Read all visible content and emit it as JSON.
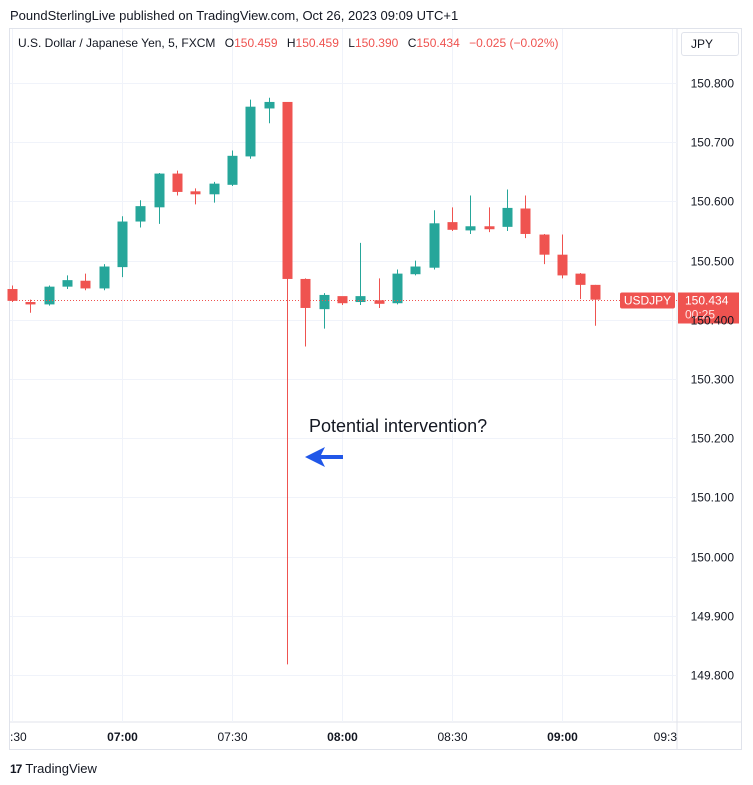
{
  "header": {
    "publisher_line": "PoundSterlingLive published on TradingView.com, Oct 26, 2023 09:09 UTC+1"
  },
  "legend": {
    "symbol": "U.S. Dollar / Japanese Yen, 5, FXCM",
    "o_label": "O",
    "o_value": "150.459",
    "h_label": "H",
    "h_value": "150.459",
    "l_label": "L",
    "l_value": "150.390",
    "c_label": "C",
    "c_value": "150.434",
    "change": "−0.025 (−0.02%)"
  },
  "currency_button": "JPY",
  "footer": {
    "logo_mark": "17",
    "logo_text": "TradingView"
  },
  "colors": {
    "up": "#26a69a",
    "down": "#ef5350",
    "arrow": "#2157e8",
    "grid": "#f0f3fa"
  },
  "chart_data": {
    "type": "candlestick",
    "interval": "5 min",
    "ylim": [
      149.72,
      150.87
    ],
    "y_ticks": [
      "149.800",
      "149.900",
      "150.000",
      "150.100",
      "150.200",
      "150.300",
      "150.400",
      "150.500",
      "150.600",
      "150.700",
      "150.800"
    ],
    "x_ticks": [
      {
        "t": "06:30",
        "label": ":30",
        "bold": false
      },
      {
        "t": "07:00",
        "label": "07:00",
        "bold": true
      },
      {
        "t": "07:30",
        "label": "07:30",
        "bold": false
      },
      {
        "t": "08:00",
        "label": "08:00",
        "bold": true
      },
      {
        "t": "08:30",
        "label": "08:30",
        "bold": false
      },
      {
        "t": "09:00",
        "label": "09:00",
        "bold": true
      },
      {
        "t": "09:30",
        "label": "09:3",
        "bold": false
      }
    ],
    "candles": [
      {
        "t": "06:30",
        "o": 150.452,
        "h": 150.458,
        "l": 150.43,
        "c": 150.432
      },
      {
        "t": "06:35",
        "o": 150.43,
        "h": 150.434,
        "l": 150.412,
        "c": 150.426
      },
      {
        "t": "06:40",
        "o": 150.426,
        "h": 150.458,
        "l": 150.424,
        "c": 150.456
      },
      {
        "t": "06:45",
        "o": 150.456,
        "h": 150.475,
        "l": 150.452,
        "c": 150.467
      },
      {
        "t": "06:50",
        "o": 150.466,
        "h": 150.478,
        "l": 150.45,
        "c": 150.453
      },
      {
        "t": "06:55",
        "o": 150.453,
        "h": 150.494,
        "l": 150.45,
        "c": 150.49
      },
      {
        "t": "07:00",
        "o": 150.489,
        "h": 150.575,
        "l": 150.472,
        "c": 150.566
      },
      {
        "t": "07:05",
        "o": 150.566,
        "h": 150.602,
        "l": 150.556,
        "c": 150.592
      },
      {
        "t": "07:10",
        "o": 150.59,
        "h": 150.648,
        "l": 150.562,
        "c": 150.647
      },
      {
        "t": "07:15",
        "o": 150.647,
        "h": 150.652,
        "l": 150.61,
        "c": 150.616
      },
      {
        "t": "07:20",
        "o": 150.617,
        "h": 150.622,
        "l": 150.595,
        "c": 150.612
      },
      {
        "t": "07:25",
        "o": 150.612,
        "h": 150.633,
        "l": 150.598,
        "c": 150.63
      },
      {
        "t": "07:30",
        "o": 150.628,
        "h": 150.686,
        "l": 150.626,
        "c": 150.677
      },
      {
        "t": "07:35",
        "o": 150.676,
        "h": 150.772,
        "l": 150.672,
        "c": 150.76
      },
      {
        "t": "07:40",
        "o": 150.757,
        "h": 150.775,
        "l": 150.732,
        "c": 150.768
      },
      {
        "t": "07:45",
        "o": 150.768,
        "h": 150.768,
        "l": 149.818,
        "c": 150.469
      },
      {
        "t": "07:50",
        "o": 150.469,
        "h": 150.47,
        "l": 150.355,
        "c": 150.42
      },
      {
        "t": "07:55",
        "o": 150.418,
        "h": 150.445,
        "l": 150.385,
        "c": 150.442
      },
      {
        "t": "08:00",
        "o": 150.44,
        "h": 150.43,
        "l": 150.425,
        "c": 150.428
      },
      {
        "t": "08:05",
        "o": 150.43,
        "h": 150.53,
        "l": 150.425,
        "c": 150.44
      },
      {
        "t": "08:10",
        "o": 150.433,
        "h": 150.47,
        "l": 150.42,
        "c": 150.427
      },
      {
        "t": "08:15",
        "o": 150.428,
        "h": 150.485,
        "l": 150.426,
        "c": 150.478
      },
      {
        "t": "08:20",
        "o": 150.477,
        "h": 150.5,
        "l": 150.475,
        "c": 150.49
      },
      {
        "t": "08:25",
        "o": 150.488,
        "h": 150.585,
        "l": 150.485,
        "c": 150.563
      },
      {
        "t": "08:30",
        "o": 150.565,
        "h": 150.59,
        "l": 150.55,
        "c": 150.552
      },
      {
        "t": "08:35",
        "o": 150.551,
        "h": 150.61,
        "l": 150.545,
        "c": 150.558
      },
      {
        "t": "08:40",
        "o": 150.558,
        "h": 150.59,
        "l": 150.548,
        "c": 150.553
      },
      {
        "t": "08:45",
        "o": 150.557,
        "h": 150.62,
        "l": 150.55,
        "c": 150.589
      },
      {
        "t": "08:50",
        "o": 150.588,
        "h": 150.61,
        "l": 150.538,
        "c": 150.545
      },
      {
        "t": "08:55",
        "o": 150.544,
        "h": 150.545,
        "l": 150.494,
        "c": 150.51
      },
      {
        "t": "09:00",
        "o": 150.51,
        "h": 150.544,
        "l": 150.47,
        "c": 150.475
      },
      {
        "t": "09:05",
        "o": 150.478,
        "h": 150.479,
        "l": 150.435,
        "c": 150.459
      },
      {
        "t": "09:09",
        "o": 150.459,
        "h": 150.459,
        "l": 150.39,
        "c": 150.434
      }
    ],
    "last_price": {
      "label": "USDJPY",
      "value": "150.434",
      "countdown": "00:25"
    },
    "annotation": {
      "text": "Potential intervention?",
      "arrow": "left"
    }
  }
}
